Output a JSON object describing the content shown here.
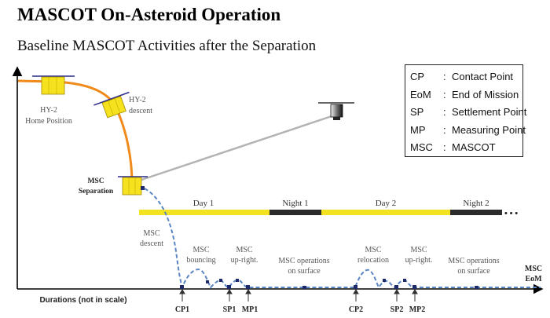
{
  "title": "MASCOT On-Asteroid Operation",
  "subtitle": "Baseline MASCOT Activities after the Separation",
  "legend": [
    {
      "abbr": "CP",
      "definition": "Contact Point"
    },
    {
      "abbr": "EoM",
      "definition": "End of Mission"
    },
    {
      "abbr": "SP",
      "definition": "Settlement Point"
    },
    {
      "abbr": "MP",
      "definition": "Measuring Point"
    },
    {
      "abbr": "MSC",
      "definition": "MASCOT"
    }
  ],
  "legend_separator": ":",
  "spacecraft": {
    "home_line1": "HY-2",
    "home_line2": "Home Position",
    "descent_line1": "HY-2",
    "descent_line2": "descent",
    "separation_line1": "MSC",
    "separation_line2": "Separation"
  },
  "day_night_bar": {
    "day1": "Day 1",
    "night1": "Night 1",
    "day2": "Day 2",
    "night2": "Night 2",
    "ellipsis": "• • •"
  },
  "phases": {
    "msc_descent_1": "MSC",
    "msc_descent_2": "descent",
    "bouncing_1": "MSC",
    "bouncing_2": "bouncing",
    "upright1_1": "MSC",
    "upright1_2": "up-right.",
    "ops1_1": "MSC operations",
    "ops1_2": "on surface",
    "relocation_1": "MSC",
    "relocation_2": "relocation",
    "upright2_1": "MSC",
    "upright2_2": "up-right.",
    "ops2_1": "MSC operations",
    "ops2_2": "on surface",
    "eom_1": "MSC",
    "eom_2": "EoM"
  },
  "axis_label": "Durations (not in scale)",
  "points": {
    "cp1": "CP1",
    "sp1": "SP1",
    "mp1": "MP1",
    "cp2": "CP2",
    "sp2": "SP2",
    "mp2": "MP2"
  },
  "colors": {
    "spacecraft_yellow": "#f5e11d",
    "orbit_orange": "#f08a1a",
    "day_yellow": "#f3e21f",
    "night_dark": "#2b2b2b",
    "trajectory_blue": "#5b86c4",
    "marker_navy": "#1f2a6b"
  }
}
